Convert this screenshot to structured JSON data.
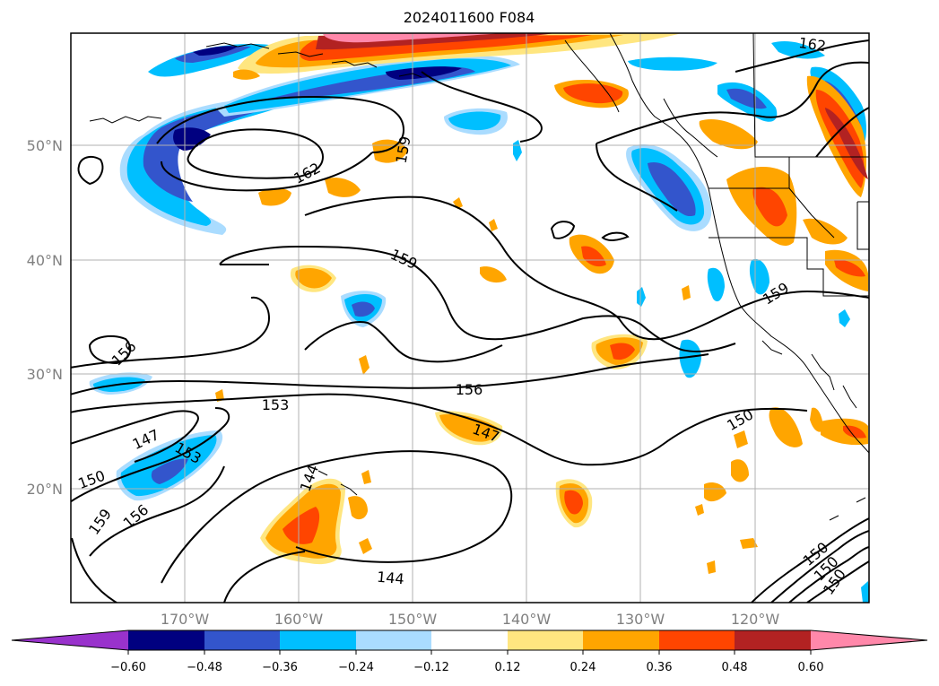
{
  "title": "2024011600 F084",
  "lat_labels": [
    "50°N",
    "40°N",
    "30°N",
    "20°N"
  ],
  "lon_labels": [
    "170°W",
    "160°W",
    "150°W",
    "140°W",
    "130°W",
    "120°W"
  ],
  "colorbar": {
    "ticks": [
      "−0.60",
      "−0.48",
      "−0.36",
      "−0.24",
      "−0.12",
      "0.12",
      "0.24",
      "0.36",
      "0.48",
      "0.60"
    ],
    "colors": [
      "#9932cc",
      "#000080",
      "#3355cc",
      "#00bfff",
      "#aadcff",
      "#ffffff",
      "#ffe680",
      "#ffa500",
      "#ff4500",
      "#b22222",
      "#ff88aa"
    ]
  },
  "contour_labels": [
    "162",
    "162",
    "159",
    "159",
    "159",
    "159",
    "156",
    "156",
    "156",
    "153",
    "153",
    "150",
    "150",
    "147",
    "147",
    "144",
    "144",
    "150",
    "150",
    "150"
  ]
}
